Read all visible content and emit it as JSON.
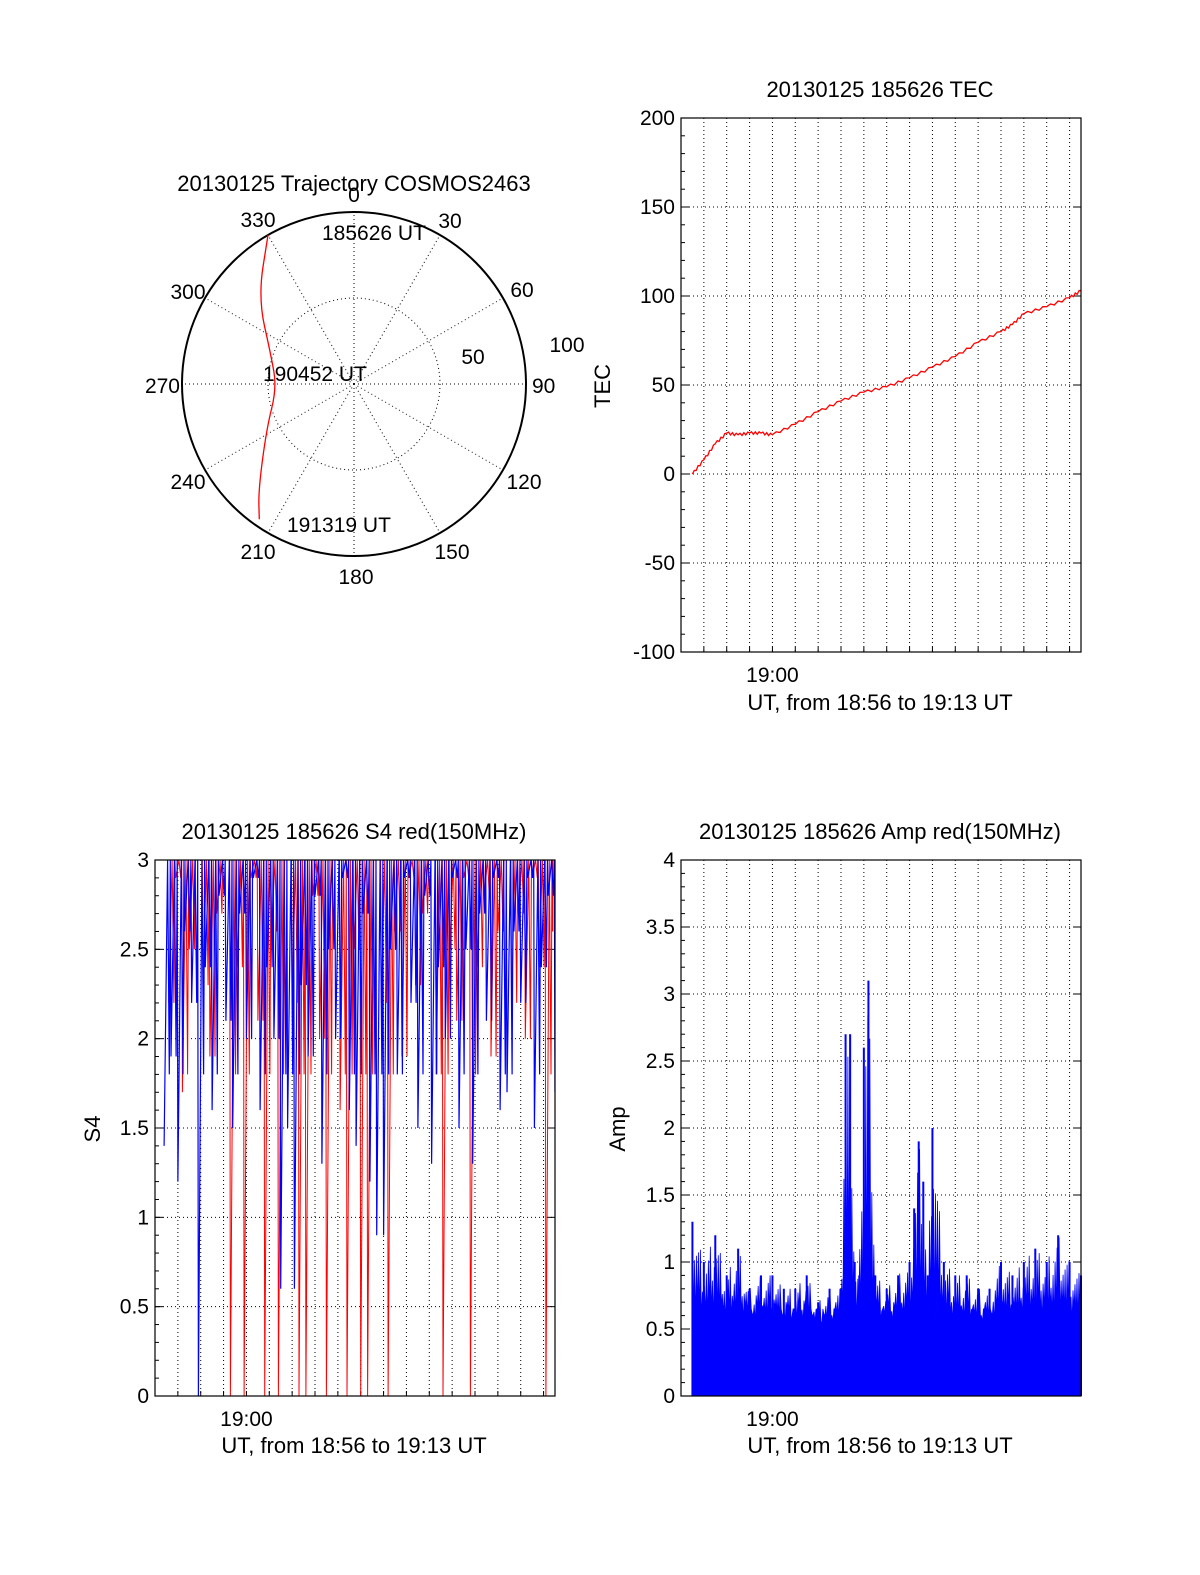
{
  "colors": {
    "red": "#ff0000",
    "blue": "#0000ff",
    "axis": "#000000"
  },
  "chart_data": [
    {
      "type": "polar",
      "title": "20130125 Trajectory COSMOS2463",
      "angle_labels": [
        "0",
        "30",
        "60",
        "90",
        "120",
        "150",
        "180",
        "210",
        "240",
        "270",
        "300",
        "330"
      ],
      "radial_labels": [
        "50",
        "100"
      ],
      "radial_values": [
        50,
        100
      ],
      "trajectory": {
        "color": "#ff0000",
        "points": [
          [
            330,
            100
          ],
          [
            312,
            75
          ],
          [
            289,
            51
          ],
          [
            267,
            45
          ],
          [
            243,
            57
          ],
          [
            222,
            83
          ],
          [
            215,
            96
          ]
        ],
        "labels": {
          "start": "185626 UT",
          "mid": "190452 UT",
          "end": "191319 UT"
        }
      }
    },
    {
      "type": "line",
      "title": "20130125 185626 TEC",
      "ylabel": "TEC",
      "xlabel": "UT, from 18:56 to 19:13 UT",
      "xtick_labels": [
        "19:00"
      ],
      "xtick_values": [
        4
      ],
      "ylim": [
        -100,
        200
      ],
      "ytick_labels": [
        "-100",
        "-50",
        "0",
        "50",
        "100",
        "150",
        "200"
      ],
      "ytick_values": [
        -100,
        -50,
        0,
        50,
        100,
        150,
        200
      ],
      "grid": true,
      "series": [
        {
          "color": "#ff0000",
          "x": [
            0.5,
            1,
            1.5,
            2,
            2.5,
            3,
            3.5,
            4,
            5,
            6,
            7,
            8,
            9,
            10,
            11,
            12,
            13,
            14,
            14.5,
            15,
            16,
            17,
            17.5
          ],
          "y": [
            0,
            8,
            17,
            23,
            22,
            23,
            23,
            22,
            28,
            35,
            41,
            46,
            49,
            54,
            60,
            66,
            74,
            80,
            84,
            90,
            94,
            99,
            103
          ]
        }
      ]
    },
    {
      "type": "line",
      "title": "20130125 185626 S4 red(150MHz)",
      "ylabel": "S4",
      "xlabel": "UT, from 18:56 to 19:13 UT",
      "xtick_labels": [
        "19:00"
      ],
      "xtick_values": [
        4
      ],
      "ylim": [
        0,
        3
      ],
      "ytick_labels": [
        "0",
        "0.5",
        "1",
        "1.5",
        "2",
        "2.5",
        "3"
      ],
      "ytick_values": [
        0,
        0.5,
        1,
        1.5,
        2,
        2.5,
        3
      ],
      "grid": true,
      "series": [
        {
          "color": "#ff0000",
          "x": [
            0.6,
            0.9,
            1.2,
            1.5,
            1.8,
            2.1,
            2.4,
            2.7,
            3.0,
            3.3,
            3.6,
            3.9,
            4.2,
            4.5,
            4.8,
            5.1,
            5.4,
            5.7,
            6.0,
            6.3,
            6.6,
            6.9,
            7.2,
            7.5,
            7.8,
            8.1,
            8.4,
            8.7,
            9.0,
            9.3,
            9.6,
            9.9,
            10.2,
            10.5,
            10.8,
            11.1,
            11.4,
            11.7,
            12.0,
            12.3,
            12.6,
            12.9,
            13.2,
            13.5,
            13.8,
            14.1,
            14.4,
            14.7,
            15.0,
            15.3,
            15.6,
            15.9,
            16.2,
            16.5,
            16.8,
            17.1,
            17.4
          ],
          "y": [
            2.2,
            2.9,
            1.7,
            2.5,
            3.0,
            2.3,
            1.9,
            2.7,
            3.0,
            0.0,
            2.4,
            0.0,
            2.9,
            2.1,
            0.0,
            2.6,
            0.0,
            3.0,
            2.2,
            0.0,
            0.0,
            2.8,
            2.0,
            0.0,
            3.0,
            1.6,
            0.0,
            2.5,
            0.0,
            0.0,
            3.0,
            2.2,
            0.0,
            2.6,
            1.9,
            2.9,
            2.3,
            2.7,
            3.0,
            1.8,
            0.0,
            2.5,
            2.1,
            2.9,
            0.0,
            2.4,
            2.8,
            1.9,
            2.6,
            3.0,
            2.2,
            2.7,
            2.0,
            2.9,
            2.4,
            0.0,
            2.6
          ]
        },
        {
          "color": "#0000ff",
          "x": [
            0.4,
            0.7,
            1.0,
            1.3,
            1.6,
            1.9,
            2.2,
            2.5,
            2.8,
            3.1,
            3.4,
            3.7,
            4.0,
            4.3,
            4.6,
            4.9,
            5.2,
            5.5,
            5.8,
            6.1,
            6.4,
            6.7,
            7.0,
            7.3,
            7.6,
            7.9,
            8.2,
            8.5,
            8.8,
            9.1,
            9.4,
            9.7,
            10.0,
            10.3,
            10.6,
            10.9,
            11.2,
            11.5,
            11.8,
            12.1,
            12.4,
            12.7,
            13.0,
            13.3,
            13.6,
            13.9,
            14.2,
            14.5,
            14.8,
            15.1,
            15.4,
            15.7,
            16.0,
            16.3,
            16.6,
            16.9,
            17.2,
            17.5
          ],
          "y": [
            1.4,
            1.9,
            1.2,
            2.6,
            2.2,
            0.0,
            2.4,
            1.6,
            2.8,
            2.1,
            1.5,
            2.7,
            2.0,
            2.9,
            1.6,
            2.4,
            2.0,
            0.6,
            1.5,
            0.6,
            2.3,
            1.9,
            2.8,
            1.3,
            2.5,
            2.0,
            2.9,
            1.6,
            1.4,
            2.7,
            1.2,
            0.9,
            0.9,
            2.5,
            1.8,
            2.9,
            2.2,
            1.5,
            2.8,
            1.3,
            2.4,
            2.0,
            2.9,
            1.5,
            2.5,
            1.3,
            2.7,
            2.1,
            2.9,
            1.6,
            1.7,
            2.6,
            2.2,
            2.9,
            1.5,
            2.4,
            2.8,
            1.7
          ]
        }
      ]
    },
    {
      "type": "bar",
      "title": "20130125 185626 Amp red(150MHz)",
      "ylabel": "Amp",
      "xlabel": "UT, from 18:56 to 19:13 UT",
      "xtick_labels": [
        "19:00"
      ],
      "xtick_values": [
        4
      ],
      "ylim": [
        0,
        4
      ],
      "ytick_labels": [
        "0",
        "0.5",
        "1",
        "1.5",
        "2",
        "2.5",
        "3",
        "3.5",
        "4"
      ],
      "ytick_values": [
        0,
        0.5,
        1,
        1.5,
        2,
        2.5,
        3,
        3.5,
        4
      ],
      "grid": true,
      "series": [
        {
          "color": "#0000ff",
          "x": [
            0.5,
            1.0,
            1.5,
            2.0,
            2.5,
            3.0,
            3.5,
            4.0,
            4.5,
            5.0,
            5.5,
            6.0,
            6.5,
            7.0,
            7.2,
            7.4,
            7.6,
            7.8,
            8.0,
            8.2,
            8.5,
            9.0,
            9.5,
            10.0,
            10.2,
            10.4,
            10.6,
            10.8,
            11.0,
            11.5,
            12.0,
            12.5,
            13.0,
            13.5,
            14.0,
            14.5,
            15.0,
            15.5,
            16.0,
            16.5,
            17.0,
            17.5
          ],
          "y": [
            1.3,
            1.0,
            1.2,
            0.9,
            1.1,
            0.8,
            0.9,
            0.9,
            0.8,
            0.8,
            0.9,
            0.7,
            0.8,
            0.8,
            2.7,
            2.7,
            1.0,
            0.9,
            2.6,
            3.1,
            0.9,
            0.8,
            0.9,
            1.0,
            1.4,
            1.9,
            1.6,
            0.9,
            2.0,
            1.0,
            0.9,
            0.9,
            0.8,
            0.8,
            1.0,
            0.9,
            1.0,
            1.1,
            1.0,
            1.2,
            1.0,
            0.9
          ]
        }
      ]
    }
  ]
}
